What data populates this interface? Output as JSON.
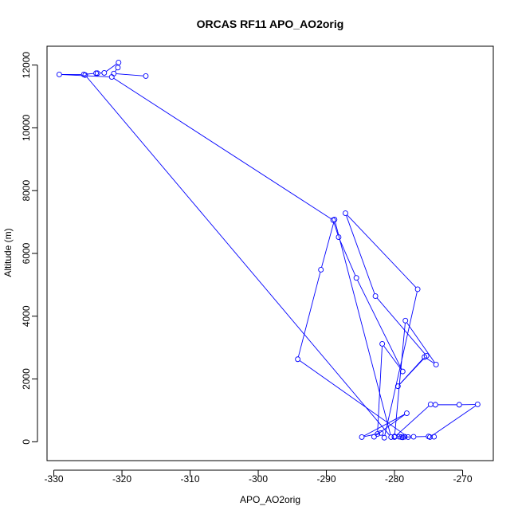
{
  "chart_data": {
    "type": "scatter",
    "title": "ORCAS RF11 APO_AO2orig",
    "xlabel": "APO_AO2orig",
    "ylabel": "Altitude (m)",
    "xlim": [
      -331,
      -265.5
    ],
    "ylim": [
      -600,
      12600
    ],
    "xticks": [
      -330,
      -320,
      -310,
      -300,
      -290,
      -280,
      -270
    ],
    "yticks": [
      0,
      2000,
      4000,
      6000,
      8000,
      10000,
      12000
    ],
    "series": [
      {
        "color": "#0000ff",
        "marker": "open-circle",
        "connected": true,
        "x": [
          -316.5,
          -321.2,
          -320.6,
          -320.5,
          -322.6,
          -323.6,
          -323.8,
          -325.6,
          -329.2,
          -321.5,
          -289.0,
          -288.2,
          -285.6,
          -278.8,
          -281.8,
          -282.5,
          -283.0,
          -278.2,
          -284.8,
          -282.0,
          -281.5,
          -276.6,
          -287.2,
          -282.8,
          -275.3,
          -279.5,
          -275.6,
          -273.9,
          -278.4,
          -280.0,
          -274.7,
          -274.0,
          -270.5,
          -267.8,
          -274.8,
          -274.2,
          -275.0,
          -277.2,
          -279.0,
          -278.5,
          -280.0,
          -279.3,
          -278.8,
          -278.0,
          -294.2,
          -290.8,
          -288.8,
          -280.5,
          -325.4
        ],
        "y": [
          11650,
          11730,
          11920,
          12080,
          11750,
          11740,
          11740,
          11700,
          11700,
          11620,
          7060,
          6520,
          5220,
          2240,
          3120,
          250,
          160,
          910,
          150,
          280,
          130,
          4860,
          7280,
          4640,
          2740,
          1770,
          2700,
          2460,
          3860,
          150,
          1190,
          1180,
          1180,
          1190,
          150,
          160,
          170,
          160,
          150,
          160,
          170,
          160,
          140,
          150,
          2630,
          5480,
          7080,
          150,
          11680
        ]
      }
    ]
  }
}
